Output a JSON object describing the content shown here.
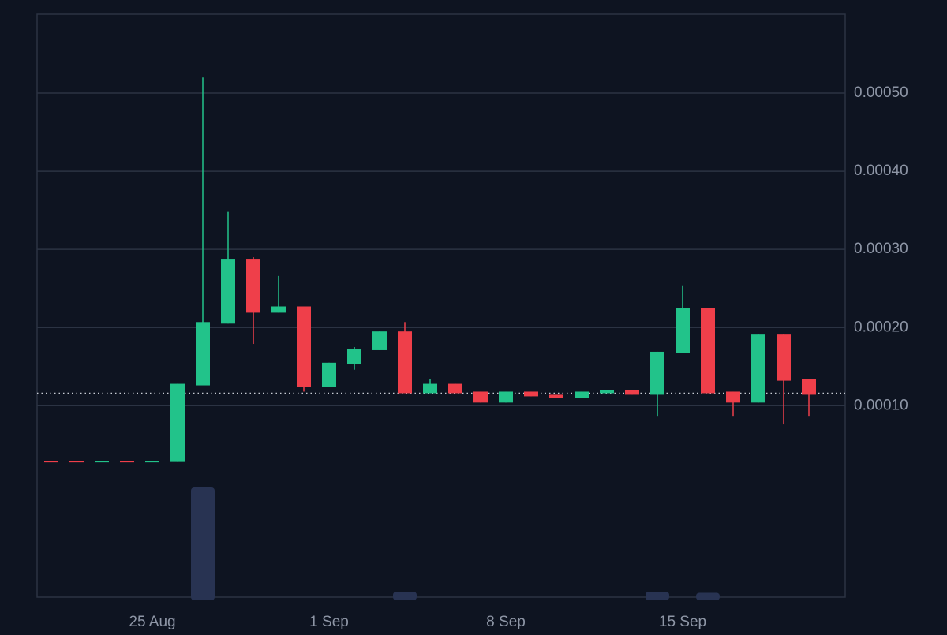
{
  "chart_data": {
    "type": "candlestick",
    "categories": [
      null,
      null,
      null,
      null,
      "25 Aug",
      null,
      null,
      null,
      null,
      null,
      null,
      "1 Sep",
      null,
      null,
      null,
      null,
      null,
      null,
      "8 Sep",
      null,
      null,
      null,
      null,
      null,
      null,
      "15 Sep",
      null,
      null,
      null,
      null,
      null
    ],
    "open": [
      2.9e-05,
      2.9e-05,
      2.8e-05,
      2.9e-05,
      2.8e-05,
      2.8e-05,
      0.000126,
      0.000205,
      0.000288,
      0.000219,
      0.000227,
      0.000124,
      0.000153,
      0.000171,
      0.000195,
      0.000116,
      0.000128,
      0.000118,
      0.000104,
      0.000118,
      0.000114,
      0.00011,
      0.000116,
      0.00012,
      0.000114,
      0.000167,
      0.000225,
      0.000118,
      0.000104,
      0.000191,
      0.000134
    ],
    "high": [
      2.9e-05,
      2.9e-05,
      2.9e-05,
      2.9e-05,
      2.9e-05,
      0.000128,
      0.00052,
      0.000348,
      0.00029,
      0.000266,
      0.000227,
      0.000155,
      0.000175,
      0.000195,
      0.000207,
      0.000134,
      0.000128,
      0.000118,
      0.000118,
      0.000118,
      0.000114,
      0.000118,
      0.00012,
      0.00012,
      0.000169,
      0.000254,
      0.000225,
      0.000118,
      0.000191,
      0.000191,
      0.000134
    ],
    "low": [
      2.8e-05,
      2.8e-05,
      2.8e-05,
      2.8e-05,
      2.8e-05,
      2.8e-05,
      0.000126,
      0.000205,
      0.000179,
      0.000219,
      0.000118,
      0.000124,
      0.000146,
      0.000171,
      0.000116,
      0.000116,
      0.000116,
      0.000104,
      0.000104,
      0.000112,
      0.00011,
      0.00011,
      0.000116,
      0.000114,
      8.6e-05,
      0.000167,
      0.000116,
      8.6e-05,
      0.000104,
      7.6e-05,
      8.6e-05
    ],
    "close": [
      2.8e-05,
      2.8e-05,
      2.9e-05,
      2.8e-05,
      2.9e-05,
      0.000128,
      0.000207,
      0.000288,
      0.000219,
      0.000227,
      0.000124,
      0.000155,
      0.000173,
      0.000195,
      0.000116,
      0.000128,
      0.000116,
      0.000104,
      0.000118,
      0.000112,
      0.00011,
      0.000118,
      0.00012,
      0.000114,
      0.000169,
      0.000225,
      0.000116,
      0.000104,
      0.000191,
      0.000132,
      0.000114
    ],
    "volume": [
      0,
      0,
      0,
      0,
      0,
      0,
      100,
      0,
      0,
      0,
      0,
      0,
      0,
      0,
      5,
      0,
      0,
      0,
      0,
      0,
      0,
      0,
      0,
      0,
      5,
      0,
      4,
      0,
      0,
      0,
      0
    ],
    "volume_lim": [
      0,
      100
    ],
    "price_line": 0.000116,
    "up_color": "#22c38a",
    "down_color": "#ef3f4a",
    "volume_color": "#283352",
    "ylim": [
      -0.000145,
      0.000601
    ],
    "yticks": [
      {
        "value": 0.0001,
        "label": "0.00010"
      },
      {
        "value": 0.0002,
        "label": "0.00020"
      },
      {
        "value": 0.0003,
        "label": "0.00030"
      },
      {
        "value": 0.0004,
        "label": "0.00040"
      },
      {
        "value": 0.0005,
        "label": "0.00050"
      }
    ],
    "grid": true
  }
}
